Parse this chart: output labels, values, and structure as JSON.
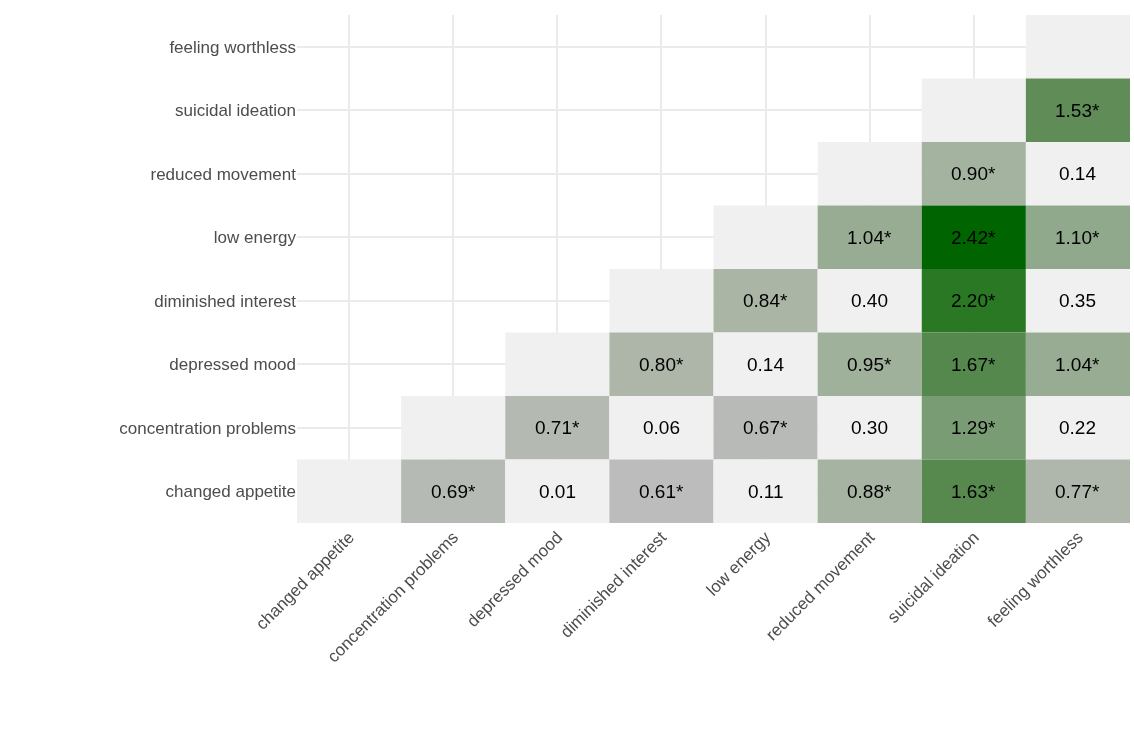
{
  "chart_data": {
    "type": "heatmap",
    "categories": [
      "changed appetite",
      "concentration problems",
      "depressed mood",
      "diminished interest",
      "low energy",
      "reduced movement",
      "suicidal ideation",
      "feeling worthless"
    ],
    "y_categories": [
      "feeling worthless",
      "suicidal ideation",
      "reduced movement",
      "low energy",
      "diminished interest",
      "depressed mood",
      "concentration problems",
      "changed appetite"
    ],
    "cells": [
      [
        null,
        null,
        null,
        null,
        null,
        null,
        null,
        null
      ],
      [
        null,
        null,
        null,
        null,
        null,
        null,
        null,
        1.53
      ],
      [
        null,
        null,
        null,
        null,
        null,
        null,
        0.9,
        0.14
      ],
      [
        null,
        null,
        null,
        null,
        null,
        1.04,
        2.42,
        1.1
      ],
      [
        null,
        null,
        null,
        null,
        0.84,
        0.4,
        2.2,
        0.35
      ],
      [
        null,
        null,
        null,
        0.8,
        0.14,
        0.95,
        1.67,
        1.04
      ],
      [
        null,
        null,
        0.71,
        0.06,
        0.67,
        0.3,
        1.29,
        0.22
      ],
      [
        null,
        0.69,
        0.01,
        0.61,
        0.11,
        0.88,
        1.63,
        0.77
      ]
    ],
    "cell_labels": [
      [
        null,
        null,
        null,
        null,
        null,
        null,
        null,
        null
      ],
      [
        null,
        null,
        null,
        null,
        null,
        null,
        null,
        "1.53*"
      ],
      [
        null,
        null,
        null,
        null,
        null,
        null,
        "0.90*",
        "0.14"
      ],
      [
        null,
        null,
        null,
        null,
        null,
        "1.04*",
        "2.42*",
        "1.10*"
      ],
      [
        null,
        null,
        null,
        null,
        "0.84*",
        "0.40",
        "2.20*",
        "0.35"
      ],
      [
        null,
        null,
        null,
        "0.80*",
        "0.14",
        "0.95*",
        "1.67*",
        "1.04*"
      ],
      [
        null,
        null,
        "0.71*",
        "0.06",
        "0.67*",
        "0.30",
        "1.29*",
        "0.22"
      ],
      [
        null,
        "0.69*",
        "0.01",
        "0.61*",
        "0.11",
        "0.88*",
        "1.63*",
        "0.77*"
      ]
    ],
    "grid": true
  }
}
